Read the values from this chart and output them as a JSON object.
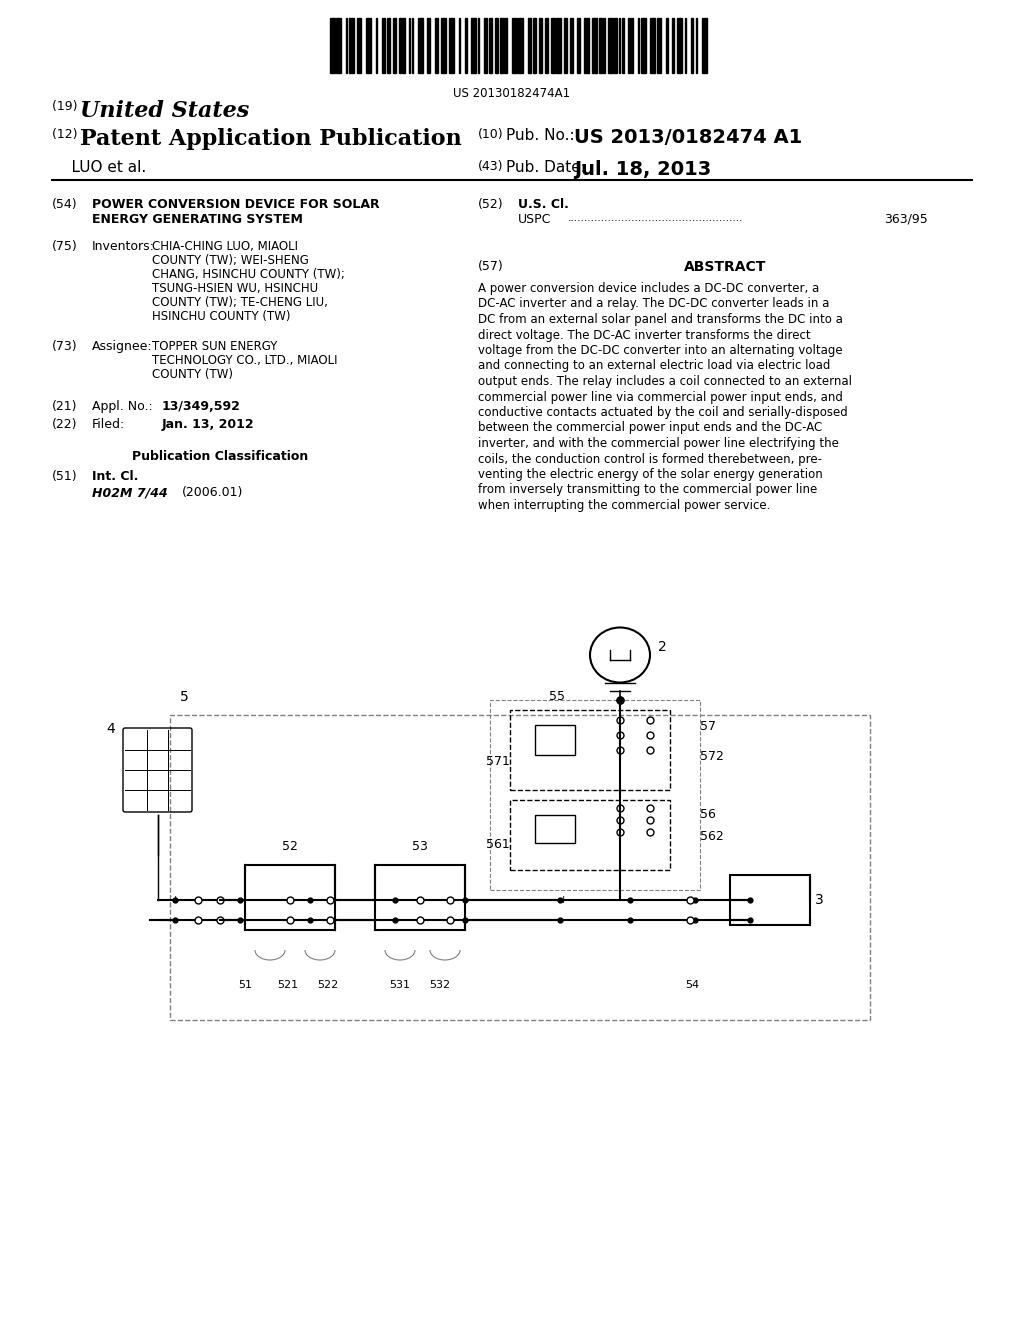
{
  "bg_color": "#ffffff",
  "barcode_text": "US 20130182474A1",
  "country": "United States",
  "label_19": "(19)",
  "label_12": "(12)",
  "pub_type": "Patent Application Publication",
  "inventors_label": "LUO et al.",
  "label_10": "(10)",
  "pub_no_label": "Pub. No.:",
  "pub_no": "US 2013/0182474 A1",
  "label_43": "(43)",
  "pub_date_label": "Pub. Date:",
  "pub_date": "Jul. 18, 2013",
  "label_54": "(54)",
  "title_line1": "POWER CONVERSION DEVICE FOR SOLAR",
  "title_line2": "ENERGY GENERATING SYSTEM",
  "label_52": "(52)",
  "us_cl_label": "U.S. Cl.",
  "uspc_label": "USPC",
  "uspc_dots": "........................................................",
  "uspc_val": "363/95",
  "label_75": "(75)",
  "inventors_title": "Inventors:",
  "inventors_text": "CHIA-CHING LUO, MIAOLI\nCOUNTY (TW); WEI-SHENG\nCHANG, HSINCHU COUNTY (TW);\nTSUNG-HSIEN WU, HSINCHU\nCOUNTY (TW); TE-CHENG LIU,\nHSINCHU COUNTY (TW)",
  "label_73": "(73)",
  "assignee_title": "Assignee:",
  "assignee_text": "TOPPER SUN ENERGY\nTECHNOLOGY CO., LTD., MIAOLI\nCOUNTY (TW)",
  "label_21": "(21)",
  "appl_label": "Appl. No.:",
  "appl_no": "13/349,592",
  "label_22": "(22)",
  "filed_label": "Filed:",
  "filed_date": "Jan. 13, 2012",
  "pub_class_label": "Publication Classification",
  "label_51": "(51)",
  "int_cl_label": "Int. Cl.",
  "int_cl_val": "H02M 7/44",
  "int_cl_year": "(2006.01)",
  "label_57": "(57)",
  "abstract_title": "ABSTRACT",
  "abstract_text": "A power conversion device includes a DC-DC converter, a\nDC-AC inverter and a relay. The DC-DC converter leads in a\nDC from an external solar panel and transforms the DC into a\ndirect voltage. The DC-AC inverter transforms the direct\nvoltage from the DC-DC converter into an alternating voltage\nand connecting to an external electric load via electric load\noutput ends. The relay includes a coil connected to an external\ncommercial power line via commercial power input ends, and\nconductive contacts actuated by the coil and serially-disposed\nbetween the commercial power input ends and the DC-AC\ninverter, and with the commercial power line electrifying the\ncoils, the conduction control is formed therebetween, pre-\nventing the electric energy of the solar energy generation\nfrom inversely transmitting to the commercial power line\nwhen interrupting the commercial power service."
}
